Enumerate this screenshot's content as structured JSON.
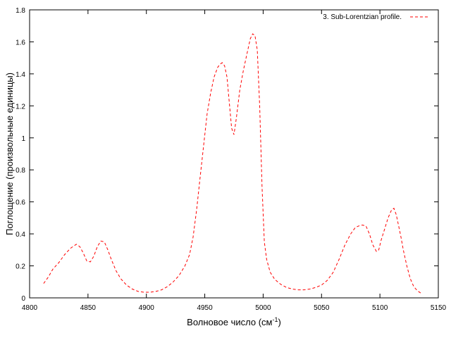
{
  "chart_data": {
    "type": "line",
    "xlabel": "Волновое число (см",
    "xlabel_superscript": "-1",
    "xlabel_suffix": ")",
    "ylabel": "Поглощение (произвольные единицы)",
    "xlim": [
      4800,
      5150
    ],
    "ylim": [
      0,
      1.8
    ],
    "x_ticks": [
      "4800",
      "4850",
      "4900",
      "4950",
      "5000",
      "5050",
      "5100",
      "5150"
    ],
    "y_ticks": [
      "0",
      "0.2",
      "0.4",
      "0.6",
      "0.8",
      "1",
      "1.2",
      "1.4",
      "1.6",
      "1.8"
    ],
    "legend_position": "top-right",
    "grid": false,
    "series": [
      {
        "name": "3. Sub-Lorentzian profile.",
        "color": "#ff0000",
        "dash": "dashed",
        "x": [
          4812,
          4816,
          4820,
          4825,
          4830,
          4835,
          4840,
          4843,
          4846,
          4849,
          4852,
          4855,
          4858,
          4861,
          4864,
          4867,
          4870,
          4874,
          4878,
          4883,
          4888,
          4893,
          4898,
          4903,
          4908,
          4913,
          4918,
          4923,
          4928,
          4933,
          4937,
          4940,
          4943,
          4946,
          4949,
          4952,
          4955,
          4958,
          4961,
          4963,
          4965,
          4967,
          4969,
          4971,
          4973,
          4975,
          4977,
          4980,
          4983,
          4986,
          4989,
          4991,
          4993,
          4995,
          4997,
          4999,
          5001,
          5003,
          5006,
          5010,
          5015,
          5020,
          5025,
          5030,
          5035,
          5040,
          5045,
          5050,
          5055,
          5060,
          5065,
          5070,
          5075,
          5079,
          5082,
          5085,
          5088,
          5091,
          5094,
          5097,
          5099,
          5101,
          5104,
          5107,
          5110,
          5112,
          5114,
          5116,
          5118,
          5120,
          5123,
          5126,
          5129,
          5132,
          5135
        ],
        "y": [
          0.09,
          0.13,
          0.18,
          0.22,
          0.27,
          0.31,
          0.335,
          0.32,
          0.28,
          0.23,
          0.225,
          0.26,
          0.32,
          0.355,
          0.35,
          0.3,
          0.24,
          0.17,
          0.12,
          0.08,
          0.055,
          0.04,
          0.035,
          0.035,
          0.04,
          0.05,
          0.07,
          0.1,
          0.14,
          0.2,
          0.27,
          0.38,
          0.55,
          0.75,
          0.95,
          1.15,
          1.28,
          1.38,
          1.44,
          1.46,
          1.47,
          1.45,
          1.38,
          1.22,
          1.06,
          1.02,
          1.12,
          1.3,
          1.42,
          1.52,
          1.62,
          1.65,
          1.64,
          1.55,
          1.2,
          0.7,
          0.35,
          0.24,
          0.16,
          0.115,
          0.085,
          0.065,
          0.055,
          0.05,
          0.05,
          0.055,
          0.065,
          0.08,
          0.11,
          0.16,
          0.24,
          0.33,
          0.4,
          0.44,
          0.45,
          0.455,
          0.45,
          0.4,
          0.33,
          0.29,
          0.3,
          0.36,
          0.43,
          0.5,
          0.55,
          0.56,
          0.52,
          0.45,
          0.38,
          0.3,
          0.2,
          0.12,
          0.07,
          0.045,
          0.03
        ]
      }
    ]
  }
}
